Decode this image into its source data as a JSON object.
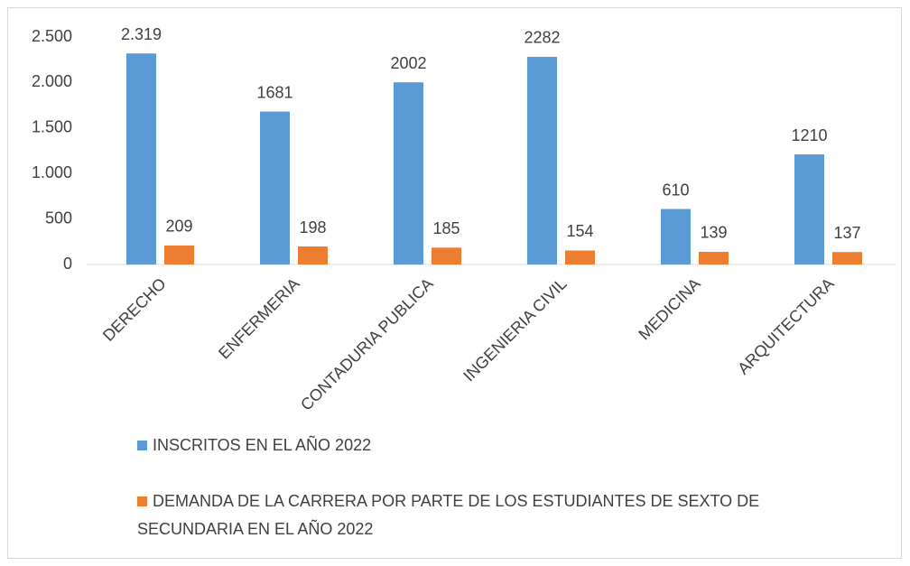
{
  "chart_data": {
    "type": "bar",
    "categories": [
      "DERECHO",
      "ENFERMERIA",
      "CONTADURIA PUBLICA",
      "INGENIERIA CIVIL",
      "MEDICINA",
      "ARQUITECTURA"
    ],
    "series": [
      {
        "name": "INSCRITOS EN EL AÑO 2022",
        "color": "#5b9bd5",
        "values": [
          2319,
          1681,
          2002,
          2282,
          610,
          1210
        ],
        "value_labels": [
          "2.319",
          "1681",
          "2002",
          "2282",
          "610",
          "1210"
        ]
      },
      {
        "name": "DEMANDA DE LA CARRERA POR PARTE DE LOS ESTUDIANTES DE SEXTO DE SECUNDARIA EN EL AÑO 2022",
        "color": "#ed7d31",
        "values": [
          209,
          198,
          185,
          154,
          139,
          137
        ]
      }
    ],
    "ylim": [
      0,
      2500
    ],
    "yticks": [
      0,
      500,
      {
        "value": 1000,
        "label": "1.000"
      },
      {
        "value": 1500,
        "label": "1.500"
      },
      {
        "value": 2000,
        "label": "2.000"
      },
      {
        "value": 2500,
        "label": "2.500"
      }
    ],
    "grid": false,
    "legend": "bottom"
  }
}
